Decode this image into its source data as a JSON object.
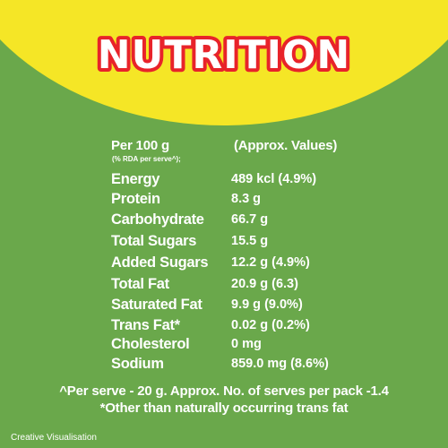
{
  "title": "NUTRITION",
  "colors": {
    "background": "#6aa84b",
    "banner": "#f5e626",
    "title_fill": "#ffffff",
    "title_outline": "#e8232a",
    "text": "#ffffff"
  },
  "header": {
    "per_label": "Per 100 g",
    "rda_note": "(% RDA per serve^);",
    "approx_label": "(Approx. Values)"
  },
  "nutrients": [
    {
      "name": "Energy",
      "value": "489 kcl (4.9%)"
    },
    {
      "name": "Protein",
      "value": "8.3 g"
    },
    {
      "name": "Carbohydrate",
      "value": "66.7 g"
    },
    {
      "name": "Total Sugars",
      "value": "15.5 g"
    },
    {
      "name": "Added Sugars",
      "value": "12.2 g (4.9%)"
    },
    {
      "name": "Total Fat",
      "value": "20.9 g (6.3)"
    },
    {
      "name": "Saturated Fat",
      "value": "9.9 g (9.0%)"
    },
    {
      "name": "Trans Fat*",
      "value": "0.02 g (0.2%)"
    },
    {
      "name": "Cholesterol",
      "value": "0 mg"
    },
    {
      "name": "Sodium",
      "value": "859.0 mg (8.6%)"
    }
  ],
  "footnotes": [
    "^Per serve - 20 g. Approx. No. of serves per pack -1.4",
    "*Other than naturally occurring trans fat"
  ],
  "credit": "Creative Visualisation"
}
